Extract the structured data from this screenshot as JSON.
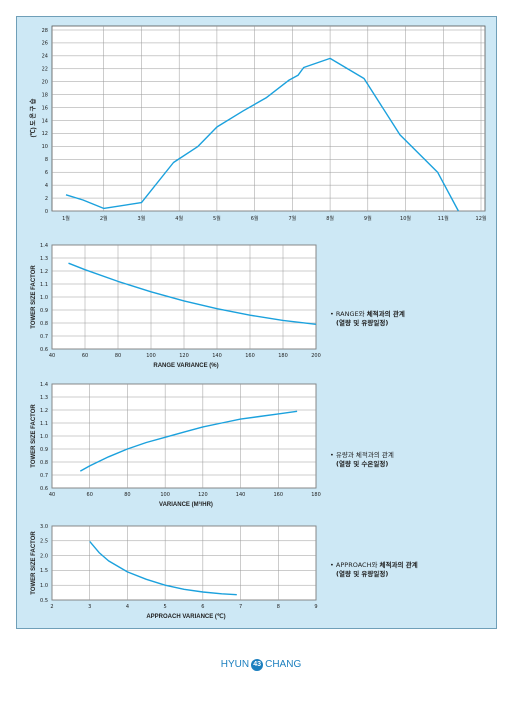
{
  "chart_data": [
    {
      "type": "line",
      "ylabel": "(℃) 도 온 구 습",
      "categories": [
        "1월",
        "2월",
        "3월",
        "4월",
        "5월",
        "6월",
        "7월",
        "8월",
        "9월",
        "10월",
        "11월",
        "12월"
      ],
      "y_ticks": [
        "0",
        "2",
        "4",
        "6",
        "8",
        "10",
        "12",
        "14",
        "16",
        "18",
        "20",
        "22",
        "24",
        "26",
        "28"
      ],
      "ylim": [
        0,
        28
      ],
      "points": [
        [
          1,
          2.5
        ],
        [
          1.45,
          1.7
        ],
        [
          2,
          0.4
        ],
        [
          3,
          1.3
        ],
        [
          3.85,
          7.5
        ],
        [
          4.5,
          10
        ],
        [
          5,
          13
        ],
        [
          5.7,
          15.5
        ],
        [
          6.3,
          17.5
        ],
        [
          6.9,
          20.2
        ],
        [
          7.15,
          21
        ],
        [
          7.3,
          22.2
        ],
        [
          8,
          23.6
        ],
        [
          8.9,
          20.5
        ],
        [
          9.85,
          11.8
        ],
        [
          10.85,
          6
        ],
        [
          11.4,
          0
        ]
      ],
      "grid": true
    },
    {
      "type": "line",
      "xlabel": "RANGE VARIANCE (%)",
      "ylabel": "TOWER SIZE FACTOR",
      "x_ticks": [
        "40",
        "60",
        "80",
        "100",
        "120",
        "140",
        "160",
        "180",
        "200"
      ],
      "y_ticks": [
        "0.6",
        "0.7",
        "0.8",
        "0.9",
        "1.0",
        "1.1",
        "1.2",
        "1.3",
        "1.4"
      ],
      "xlim": [
        40,
        200
      ],
      "ylim": [
        0.6,
        1.4
      ],
      "points": [
        [
          50,
          1.26
        ],
        [
          60,
          1.21
        ],
        [
          80,
          1.12
        ],
        [
          100,
          1.04
        ],
        [
          120,
          0.97
        ],
        [
          140,
          0.91
        ],
        [
          160,
          0.86
        ],
        [
          180,
          0.82
        ],
        [
          200,
          0.79
        ]
      ],
      "grid": true
    },
    {
      "type": "line",
      "xlabel": "VARIANCE (M³/HR)",
      "ylabel": "TOWER SIZE FACTOR",
      "x_ticks": [
        "40",
        "60",
        "80",
        "100",
        "120",
        "140",
        "160",
        "180"
      ],
      "y_ticks": [
        "0.6",
        "0.7",
        "0.8",
        "0.9",
        "1.0",
        "1.1",
        "1.2",
        "1.3",
        "1.4"
      ],
      "xlim": [
        40,
        180
      ],
      "ylim": [
        0.6,
        1.4
      ],
      "points": [
        [
          55,
          0.73
        ],
        [
          60,
          0.77
        ],
        [
          70,
          0.84
        ],
        [
          80,
          0.9
        ],
        [
          90,
          0.95
        ],
        [
          100,
          0.99
        ],
        [
          110,
          1.03
        ],
        [
          120,
          1.07
        ],
        [
          130,
          1.1
        ],
        [
          140,
          1.13
        ],
        [
          150,
          1.15
        ],
        [
          160,
          1.17
        ],
        [
          170,
          1.19
        ]
      ],
      "grid": true
    },
    {
      "type": "line",
      "xlabel": "APPROACH VARIANCE (℃)",
      "ylabel": "TOWER SIZE FACTOR",
      "x_ticks": [
        "2",
        "3",
        "4",
        "5",
        "6",
        "7",
        "8",
        "9"
      ],
      "y_ticks": [
        "0.5",
        "1.0",
        "1.5",
        "2.0",
        "2.5",
        "3.0"
      ],
      "xlim": [
        2,
        9
      ],
      "ylim": [
        0.5,
        3.0
      ],
      "points": [
        [
          3,
          2.48
        ],
        [
          3.25,
          2.1
        ],
        [
          3.5,
          1.82
        ],
        [
          4,
          1.45
        ],
        [
          4.5,
          1.2
        ],
        [
          5,
          1.0
        ],
        [
          5.5,
          0.86
        ],
        [
          6,
          0.77
        ],
        [
          6.5,
          0.71
        ],
        [
          6.9,
          0.68
        ]
      ],
      "grid": true
    }
  ],
  "notes": [
    {
      "bullet": "•",
      "lead": "RANGE와 ",
      "bold": "체적과의 관계",
      "sub": "(열량 및 유량일정)"
    },
    {
      "bullet": "•",
      "lead": "유량과 체적과의 관계",
      "bold": "",
      "sub": "(열량 및 수온일정)"
    },
    {
      "bullet": "•",
      "lead": "APPROACH와 ",
      "bold": "체적과의 관계",
      "sub": "(열량 및 유량일정)"
    }
  ],
  "footer": {
    "left": "HYUN",
    "page": "43",
    "right": "CHANG"
  },
  "colors": {
    "panel": "#cde8f5",
    "curve": "#1ba1dd",
    "brand": "#1b7fbf"
  }
}
